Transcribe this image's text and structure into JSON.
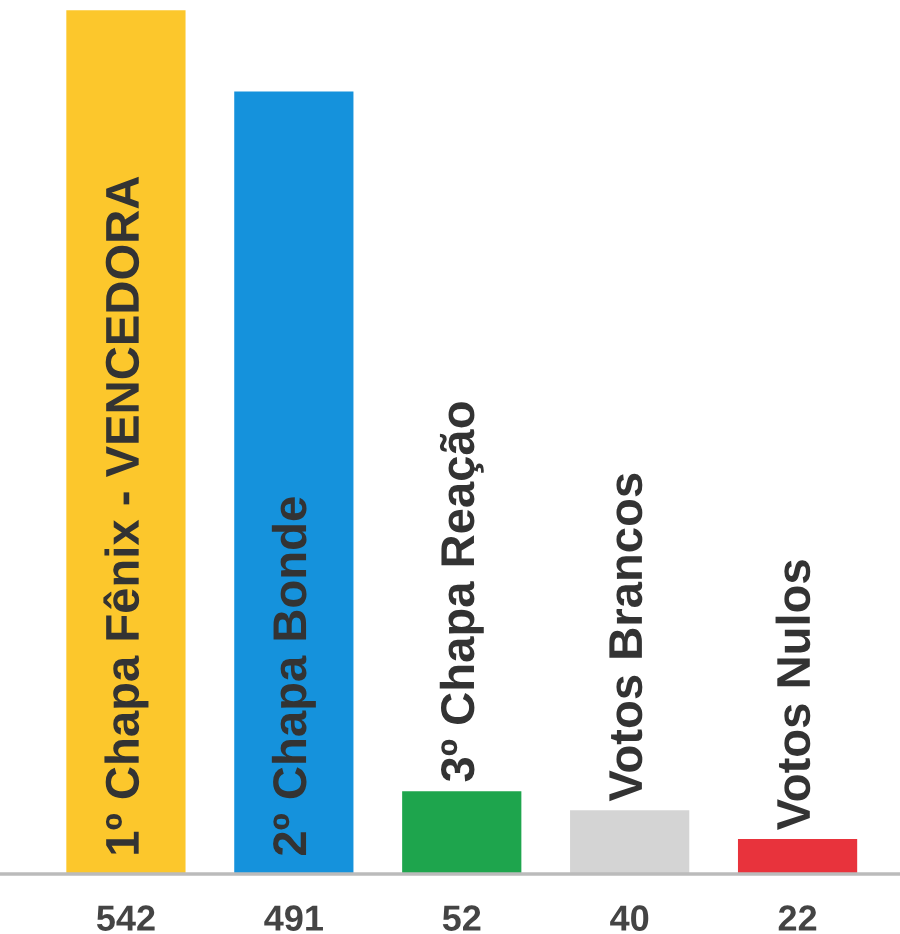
{
  "chart_data": {
    "type": "bar",
    "categories": [
      "1º Chapa Fênix - VENCEDORA",
      "2º Chapa Bonde",
      "3º Chapa Reação",
      "Votos Brancos",
      "Votos Nulos"
    ],
    "values": [
      542,
      491,
      52,
      40,
      22
    ],
    "colors": [
      "#fcc72c",
      "#1592dc",
      "#1ea54d",
      "#d4d4d4",
      "#e8333c"
    ],
    "data_labels": true
  }
}
